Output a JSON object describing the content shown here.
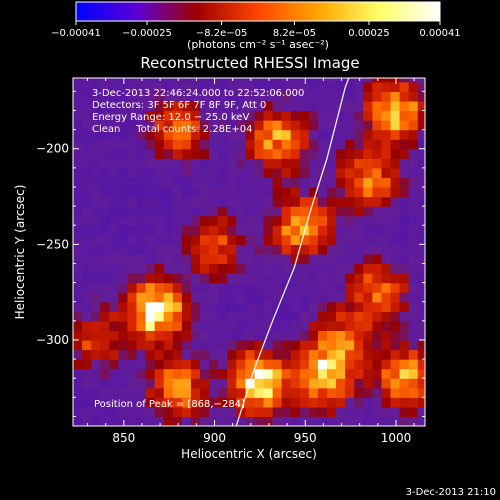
{
  "chart_data": {
    "type": "heatmap",
    "title": "Reconstructed RHESSI Image",
    "xlabel": "Heliocentric X (arcsec)",
    "ylabel": "Heliocentric Y (arcsec)",
    "xlim": [
      822,
      1016
    ],
    "ylim": [
      -345,
      -163
    ],
    "xticks": [
      850,
      900,
      950,
      1000
    ],
    "xtick_labels": [
      "850",
      "900",
      "950",
      "1000"
    ],
    "yticks": [
      -200,
      -250,
      -300
    ],
    "ytick_labels": [
      "−200",
      "−250",
      "−300"
    ],
    "colorbar": {
      "range": [
        -0.00041,
        0.00041
      ],
      "tick_values": [
        -0.00041,
        -0.00025,
        -8.2e-05,
        8.2e-05,
        0.00025,
        0.00041
      ],
      "tick_labels": [
        "−0.00041",
        "−0.00025",
        "−8.2e−05",
        "8.2e−05",
        "0.00025",
        "0.00041"
      ],
      "unit_text": "(photons cm⁻² s⁻¹ asec⁻²)",
      "colors": [
        "#0000ff",
        "#5a00d6",
        "#a00000",
        "#ff4500",
        "#ffa500",
        "#ffff66",
        "#ffffff"
      ]
    },
    "annotations": [
      "3-Dec-2013 22:46:24.000 to 22:52:06.000",
      "Detectors: 3F 5F 6F 7F 8F 9F, Att 0",
      "Energy Range: 12.0 − 25.0 keV",
      "Clean     Total counts: 2.28E+04"
    ],
    "peak_label": "Position of Peak = [868,−284]",
    "peak": [
      868,
      -284
    ],
    "hot_spots": [
      {
        "x": 868,
        "y": -284,
        "value": 0.00041
      },
      {
        "x": 925,
        "y": -322,
        "value": 0.00037
      },
      {
        "x": 948,
        "y": -240,
        "value": 0.00028
      },
      {
        "x": 935,
        "y": -195,
        "value": 0.00026
      },
      {
        "x": 1000,
        "y": -180,
        "value": 0.0003
      },
      {
        "x": 985,
        "y": -215,
        "value": 0.00024
      },
      {
        "x": 880,
        "y": -190,
        "value": 0.00018
      },
      {
        "x": 990,
        "y": -275,
        "value": 0.0002
      },
      {
        "x": 1005,
        "y": -320,
        "value": 0.00026
      },
      {
        "x": 960,
        "y": -320,
        "value": 0.00028
      },
      {
        "x": 880,
        "y": -325,
        "value": 0.00022
      },
      {
        "x": 835,
        "y": -300,
        "value": 0.00012
      },
      {
        "x": 900,
        "y": -250,
        "value": 0.00015
      },
      {
        "x": 970,
        "y": -300,
        "value": 0.00018
      }
    ],
    "limb_curve": [
      [
        912,
        -345
      ],
      [
        922,
        -315
      ],
      [
        932,
        -290
      ],
      [
        944,
        -262
      ],
      [
        953,
        -232
      ],
      [
        962,
        -205
      ],
      [
        972,
        -168
      ],
      [
        974,
        -163
      ]
    ]
  },
  "footer_timestamp": "3-Dec-2013 21:10"
}
